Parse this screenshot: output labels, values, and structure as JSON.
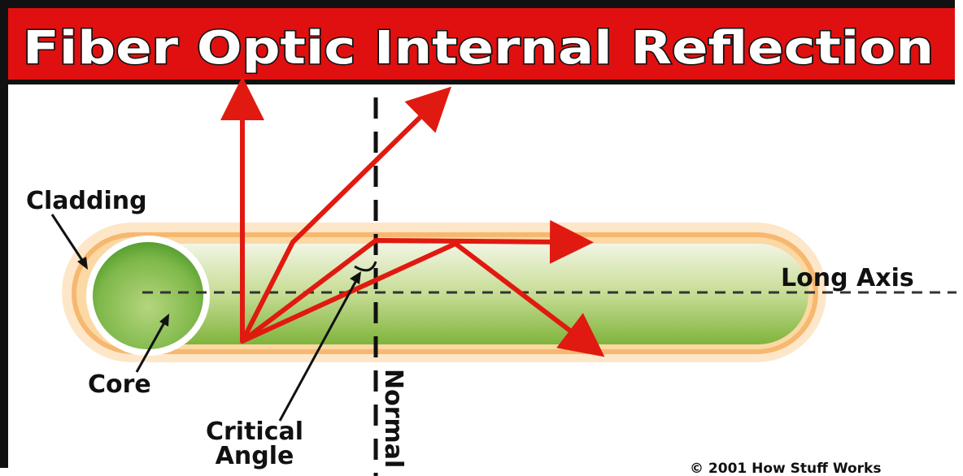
{
  "title": "Fiber Optic Internal Reflection",
  "labels": {
    "cladding": "Cladding",
    "core": "Core",
    "long_axis": "Long Axis",
    "normal": "Normal",
    "critical_angle_line1": "Critical",
    "critical_angle_line2": "Angle"
  },
  "credit": "© 2001 How Stuff Works",
  "colors": {
    "banner": "#e01010",
    "ray": "#e01a10",
    "core_green": "#8cbf4a",
    "cladding_orange": "#f6b870"
  }
}
